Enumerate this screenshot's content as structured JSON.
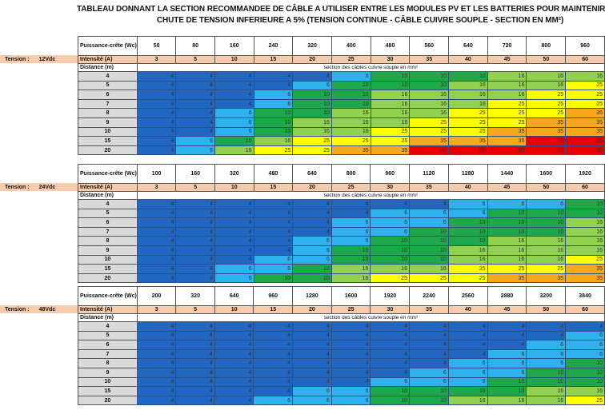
{
  "title_line1": "TABLEAU DONNANT LA SECTION RECOMMANDEE DE CÂBLE A UTILISER ENTRE LES MODULES PV ET LES BATTERIES POUR MAINTENIR LA",
  "title_line2": "CHUTE DE TENSION INFERIEURE A 5% (TENSION CONTINUE - CÂBLE CUIVRE SOUPLE - SECTION EN MM²)",
  "labels": {
    "tension": "Tension :",
    "puissance": "Puissance-crête (Wc)",
    "intensite": "Intensité (A)",
    "distance": "Distance (m)",
    "caption": "section des câbles cuivre souple en mm²"
  },
  "colors": {
    "4": "#1f67c2",
    "6": "#2eb2ef",
    "10": "#1fa84a",
    "16": "#92d050",
    "25": "#ffff00",
    "35": "#f7a81b",
    "50": "#e80000"
  },
  "distances": [
    "4",
    "5",
    "6",
    "7",
    "8",
    "9",
    "10",
    "15",
    "20"
  ],
  "intensities": [
    "3",
    "5",
    "10",
    "15",
    "20",
    "25",
    "30",
    "35",
    "40",
    "45",
    "50",
    "60"
  ],
  "sections": [
    {
      "voltage": "12Vdc",
      "powers": [
        "50",
        "80",
        "160",
        "240",
        "320",
        "400",
        "480",
        "560",
        "640",
        "720",
        "800",
        "960"
      ],
      "rows": [
        [
          "4",
          "4",
          "4",
          "4",
          "4",
          "6",
          "10",
          "10",
          "10",
          "16",
          "16",
          "16"
        ],
        [
          "4",
          "4",
          "4",
          "4",
          "6",
          "10",
          "10",
          "10",
          "16",
          "16",
          "16",
          "25"
        ],
        [
          "4",
          "4",
          "4",
          "6",
          "10",
          "10",
          "16",
          "16",
          "16",
          "16",
          "25",
          "25"
        ],
        [
          "4",
          "4",
          "4",
          "6",
          "10",
          "10",
          "16",
          "16",
          "16",
          "25",
          "25",
          "25"
        ],
        [
          "4",
          "4",
          "6",
          "10",
          "10",
          "16",
          "16",
          "16",
          "25",
          "25",
          "25",
          "35"
        ],
        [
          "4",
          "4",
          "6",
          "10",
          "16",
          "16",
          "16",
          "25",
          "25",
          "25",
          "35",
          "35"
        ],
        [
          "4",
          "4",
          "6",
          "10",
          "16",
          "16",
          "25",
          "25",
          "25",
          "35",
          "35",
          "35"
        ],
        [
          "4",
          "6",
          "10",
          "16",
          "25",
          "25",
          "25",
          "35",
          "35",
          "35",
          "50",
          "50"
        ],
        [
          "4",
          "6",
          "16",
          "25",
          "25",
          "35",
          "35",
          "50",
          "50",
          "50",
          "50",
          "50"
        ]
      ]
    },
    {
      "voltage": "24Vdc",
      "powers": [
        "100",
        "160",
        "320",
        "480",
        "640",
        "800",
        "960",
        "1120",
        "1280",
        "1440",
        "1600",
        "1920"
      ],
      "rows": [
        [
          "4",
          "4",
          "4",
          "4",
          "4",
          "4",
          "4",
          "4",
          "6",
          "6",
          "6",
          "10"
        ],
        [
          "4",
          "4",
          "4",
          "4",
          "4",
          "4",
          "6",
          "6",
          "6",
          "10",
          "10",
          "10"
        ],
        [
          "4",
          "4",
          "4",
          "4",
          "4",
          "6",
          "6",
          "6",
          "10",
          "10",
          "10",
          "16"
        ],
        [
          "4",
          "4",
          "4",
          "4",
          "4",
          "6",
          "6",
          "10",
          "10",
          "10",
          "10",
          "16"
        ],
        [
          "4",
          "4",
          "4",
          "4",
          "6",
          "6",
          "10",
          "10",
          "10",
          "16",
          "16",
          "16"
        ],
        [
          "4",
          "4",
          "4",
          "4",
          "6",
          "10",
          "10",
          "10",
          "16",
          "16",
          "16",
          "16"
        ],
        [
          "4",
          "4",
          "4",
          "6",
          "6",
          "10",
          "10",
          "10",
          "16",
          "16",
          "16",
          "25"
        ],
        [
          "4",
          "4",
          "6",
          "6",
          "10",
          "16",
          "16",
          "16",
          "25",
          "25",
          "25",
          "35"
        ],
        [
          "4",
          "4",
          "6",
          "10",
          "10",
          "16",
          "25",
          "25",
          "25",
          "35",
          "35",
          "35"
        ]
      ]
    },
    {
      "voltage": "48Vdc",
      "powers": [
        "200",
        "320",
        "640",
        "960",
        "1280",
        "1600",
        "1920",
        "2240",
        "2560",
        "2880",
        "3200",
        "3840"
      ],
      "rows": [
        [
          "4",
          "4",
          "4",
          "4",
          "4",
          "4",
          "4",
          "4",
          "4",
          "4",
          "4",
          "4"
        ],
        [
          "4",
          "4",
          "4",
          "4",
          "4",
          "4",
          "4",
          "4",
          "4",
          "4",
          "4",
          "6"
        ],
        [
          "4",
          "4",
          "4",
          "4",
          "4",
          "4",
          "4",
          "4",
          "4",
          "4",
          "6",
          "6"
        ],
        [
          "4",
          "4",
          "4",
          "4",
          "4",
          "4",
          "4",
          "4",
          "4",
          "6",
          "6",
          "6"
        ],
        [
          "4",
          "4",
          "4",
          "4",
          "4",
          "4",
          "4",
          "4",
          "6",
          "6",
          "6",
          "10"
        ],
        [
          "4",
          "4",
          "4",
          "4",
          "4",
          "4",
          "4",
          "6",
          "6",
          "6",
          "10",
          "10"
        ],
        [
          "4",
          "4",
          "4",
          "4",
          "4",
          "4",
          "6",
          "6",
          "6",
          "10",
          "10",
          "10"
        ],
        [
          "4",
          "4",
          "4",
          "4",
          "6",
          "6",
          "10",
          "10",
          "10",
          "10",
          "16",
          "16"
        ],
        [
          "4",
          "4",
          "4",
          "6",
          "6",
          "6",
          "10",
          "10",
          "16",
          "16",
          "16",
          "25"
        ]
      ]
    }
  ]
}
